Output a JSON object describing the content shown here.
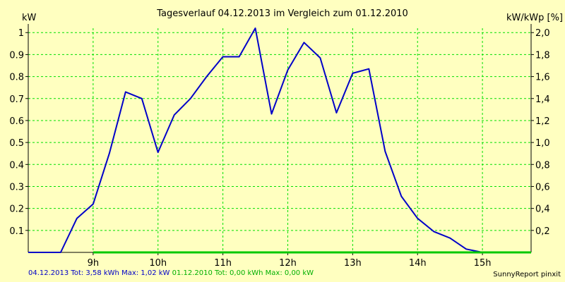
{
  "chart_data": {
    "type": "line",
    "title": "Tagesverlauf 04.12.2013 im Vergleich zum 01.12.2010",
    "ylabel_left": "kW",
    "ylabel_right": "kW/kWp [%]",
    "x_range": [
      8.0,
      15.75
    ],
    "ylim_left": [
      0,
      1.02
    ],
    "ylim_right": [
      0,
      2.04
    ],
    "x_ticks": [
      {
        "value": 9,
        "label": "9h"
      },
      {
        "value": 10,
        "label": "10h"
      },
      {
        "value": 11,
        "label": "11h"
      },
      {
        "value": 12,
        "label": "12h"
      },
      {
        "value": 13,
        "label": "13h"
      },
      {
        "value": 14,
        "label": "14h"
      },
      {
        "value": 15,
        "label": "15h"
      }
    ],
    "y_ticks_left": [
      {
        "value": 0.1,
        "label": "0.1"
      },
      {
        "value": 0.2,
        "label": "0.2"
      },
      {
        "value": 0.3,
        "label": "0.3"
      },
      {
        "value": 0.4,
        "label": "0.4"
      },
      {
        "value": 0.5,
        "label": "0.5"
      },
      {
        "value": 0.6,
        "label": "0.6"
      },
      {
        "value": 0.7,
        "label": "0.7"
      },
      {
        "value": 0.8,
        "label": "0.8"
      },
      {
        "value": 0.9,
        "label": "0.9"
      },
      {
        "value": 1.0,
        "label": "1"
      }
    ],
    "y_ticks_right": [
      {
        "value": 0.2,
        "label": "0,2"
      },
      {
        "value": 0.4,
        "label": "0,4"
      },
      {
        "value": 0.6,
        "label": "0,6"
      },
      {
        "value": 0.8,
        "label": "0,8"
      },
      {
        "value": 1.0,
        "label": "1,0"
      },
      {
        "value": 1.2,
        "label": "1,2"
      },
      {
        "value": 1.4,
        "label": "1,4"
      },
      {
        "value": 1.6,
        "label": "1,6"
      },
      {
        "value": 1.8,
        "label": "1,8"
      },
      {
        "value": 2.0,
        "label": "2,0"
      }
    ],
    "series": [
      {
        "name": "04.12.2013",
        "color": "#0000c8",
        "x": [
          8.0,
          8.5,
          8.75,
          9.0,
          9.25,
          9.5,
          9.75,
          10.0,
          10.25,
          10.5,
          10.75,
          11.0,
          11.25,
          11.5,
          11.75,
          12.0,
          12.25,
          12.5,
          12.75,
          13.0,
          13.25,
          13.5,
          13.75,
          14.0,
          14.25,
          14.5,
          14.75,
          15.0,
          15.25,
          15.5
        ],
        "y": [
          0.0,
          0.0,
          0.155,
          0.22,
          0.45,
          0.73,
          0.7,
          0.455,
          0.625,
          0.7,
          0.8,
          0.89,
          0.89,
          1.02,
          0.63,
          0.83,
          0.955,
          0.885,
          0.635,
          0.815,
          0.835,
          0.46,
          0.255,
          0.155,
          0.095,
          0.065,
          0.015,
          0.0,
          0.0,
          0.0
        ]
      },
      {
        "name": "01.12.2010",
        "color": "#00c800",
        "x": [
          9.0,
          15.75
        ],
        "y": [
          0.0,
          0.0
        ]
      }
    ]
  },
  "footer": {
    "series1_label": "04.12.2013 Tot: 3,58 kWh Max: 1,02 kW",
    "series1_color": "#0000c8",
    "series2_label": "01.12.2010 Tot: 0,00 kWh Max: 0,00 kW",
    "series2_color": "#00b000",
    "credit": "SunnyReport pinxit"
  }
}
